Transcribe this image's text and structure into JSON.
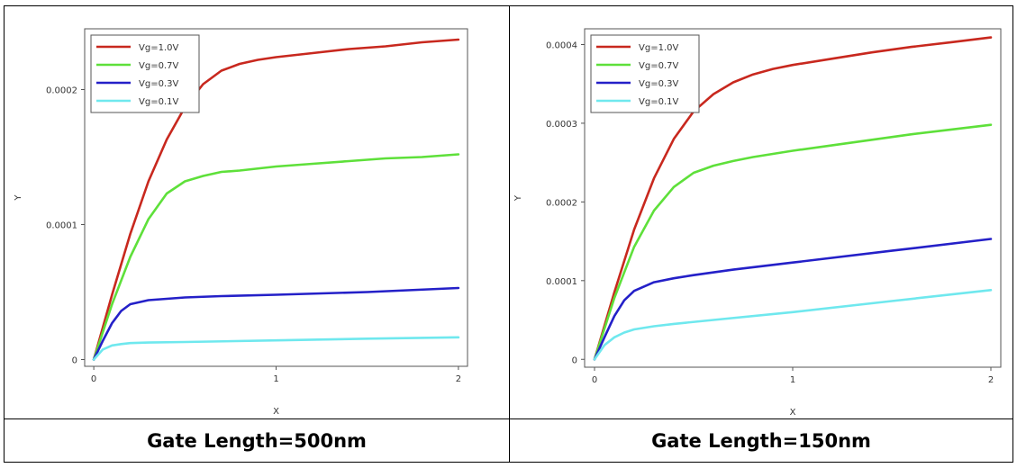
{
  "chart_data": [
    {
      "type": "line",
      "caption": "Gate Length=500nm",
      "xlabel": "X",
      "ylabel": "Y",
      "xlim": [
        -0.05,
        2.05
      ],
      "ylim": [
        -5e-06,
        0.000245
      ],
      "xticks": [
        {
          "v": 0,
          "label": "0"
        },
        {
          "v": 1,
          "label": "1"
        },
        {
          "v": 2,
          "label": "2"
        }
      ],
      "yticks": [
        {
          "v": 0,
          "label": "0"
        },
        {
          "v": 0.0001,
          "label": "0.0001"
        },
        {
          "v": 0.0002,
          "label": "0.0002"
        }
      ],
      "legend_position": "top-left",
      "series": [
        {
          "name": "Vg=1.0V",
          "color": "#c8281e",
          "x": [
            0,
            0.1,
            0.2,
            0.3,
            0.4,
            0.5,
            0.6,
            0.7,
            0.8,
            0.9,
            1.0,
            1.2,
            1.4,
            1.6,
            1.8,
            2.0
          ],
          "y": [
            0,
            4.8e-05,
            9.3e-05,
            0.000132,
            0.000163,
            0.000187,
            0.000204,
            0.000214,
            0.000219,
            0.000222,
            0.000224,
            0.000227,
            0.00023,
            0.000232,
            0.000235,
            0.000237
          ]
        },
        {
          "name": "Vg=0.7V",
          "color": "#5ee03a",
          "x": [
            0,
            0.1,
            0.2,
            0.3,
            0.4,
            0.5,
            0.6,
            0.7,
            0.8,
            1.0,
            1.2,
            1.4,
            1.6,
            1.8,
            2.0
          ],
          "y": [
            0,
            4.1e-05,
            7.6e-05,
            0.000104,
            0.000123,
            0.000132,
            0.000136,
            0.000139,
            0.00014,
            0.000143,
            0.000145,
            0.000147,
            0.000149,
            0.00015,
            0.000152
          ]
        },
        {
          "name": "Vg=0.3V",
          "color": "#2420c8",
          "x": [
            0,
            0.05,
            0.1,
            0.15,
            0.2,
            0.3,
            0.4,
            0.5,
            0.7,
            1.0,
            1.5,
            2.0
          ],
          "y": [
            0,
            1.4e-05,
            2.7e-05,
            3.6e-05,
            4.1e-05,
            4.4e-05,
            4.5e-05,
            4.6e-05,
            4.7e-05,
            4.8e-05,
            5e-05,
            5.3e-05
          ]
        },
        {
          "name": "Vg=0.1V",
          "color": "#6fe8ee",
          "x": [
            0,
            0.05,
            0.1,
            0.15,
            0.2,
            0.3,
            0.5,
            1.0,
            1.5,
            2.0
          ],
          "y": [
            0,
            7.5e-06,
            1.05e-05,
            1.15e-05,
            1.22e-05,
            1.26e-05,
            1.3e-05,
            1.42e-05,
            1.55e-05,
            1.65e-05
          ]
        }
      ]
    },
    {
      "type": "line",
      "caption": "Gate Length=150nm",
      "xlabel": "X",
      "ylabel": "Y",
      "xlim": [
        -0.05,
        2.05
      ],
      "ylim": [
        -1e-05,
        0.00042
      ],
      "xticks": [
        {
          "v": 0,
          "label": "0"
        },
        {
          "v": 1,
          "label": "1"
        },
        {
          "v": 2,
          "label": "2"
        }
      ],
      "yticks": [
        {
          "v": 0,
          "label": "0"
        },
        {
          "v": 0.0001,
          "label": "0.0001"
        },
        {
          "v": 0.0002,
          "label": "0.0002"
        },
        {
          "v": 0.0003,
          "label": "0.0003"
        },
        {
          "v": 0.0004,
          "label": "0.0004"
        }
      ],
      "legend_position": "top-left",
      "series": [
        {
          "name": "Vg=1.0V",
          "color": "#c8281e",
          "x": [
            0,
            0.1,
            0.2,
            0.3,
            0.4,
            0.5,
            0.6,
            0.7,
            0.8,
            0.9,
            1.0,
            1.2,
            1.4,
            1.6,
            1.8,
            2.0
          ],
          "y": [
            0,
            8.5e-05,
            0.000165,
            0.00023,
            0.00028,
            0.000315,
            0.000337,
            0.000352,
            0.000362,
            0.000369,
            0.000374,
            0.000382,
            0.00039,
            0.000397,
            0.000403,
            0.000409
          ]
        },
        {
          "name": "Vg=0.7V",
          "color": "#5ee03a",
          "x": [
            0,
            0.1,
            0.2,
            0.3,
            0.4,
            0.5,
            0.6,
            0.7,
            0.8,
            1.0,
            1.2,
            1.4,
            1.6,
            1.8,
            2.0
          ],
          "y": [
            0,
            7.8e-05,
            0.000143,
            0.000189,
            0.000219,
            0.000237,
            0.000246,
            0.000252,
            0.000257,
            0.000265,
            0.000272,
            0.000279,
            0.000286,
            0.000292,
            0.000298
          ]
        },
        {
          "name": "Vg=0.3V",
          "color": "#2420c8",
          "x": [
            0,
            0.05,
            0.1,
            0.15,
            0.2,
            0.3,
            0.4,
            0.5,
            0.7,
            1.0,
            1.5,
            2.0
          ],
          "y": [
            0,
            2.8e-05,
            5.5e-05,
            7.5e-05,
            8.7e-05,
            9.8e-05,
            0.000103,
            0.000107,
            0.000114,
            0.000123,
            0.000138,
            0.000153
          ]
        },
        {
          "name": "Vg=0.1V",
          "color": "#6fe8ee",
          "x": [
            0,
            0.05,
            0.1,
            0.15,
            0.2,
            0.3,
            0.4,
            0.6,
            1.0,
            1.5,
            2.0
          ],
          "y": [
            0,
            1.8e-05,
            2.8e-05,
            3.4e-05,
            3.8e-05,
            4.2e-05,
            4.5e-05,
            5e-05,
            6e-05,
            7.4e-05,
            8.8e-05
          ]
        }
      ]
    }
  ]
}
